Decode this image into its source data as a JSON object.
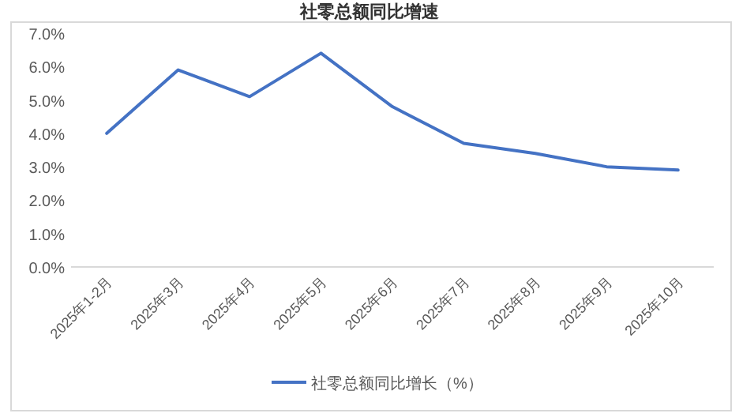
{
  "chart_data": {
    "type": "line",
    "title": "社零总额同比增速",
    "categories": [
      "2025年1-2月",
      "2025年3月",
      "2025年4月",
      "2025年5月",
      "2025年6月",
      "2025年7月",
      "2025年8月",
      "2025年9月",
      "2025年10月"
    ],
    "series": [
      {
        "name": "社零总额同比增长（%）",
        "color": "#4472c4",
        "values": [
          4.0,
          5.9,
          5.1,
          6.4,
          4.8,
          3.7,
          3.4,
          3.0,
          2.9
        ]
      }
    ],
    "ylim": [
      0,
      7
    ],
    "yticks": [
      {
        "value": 0,
        "label": "0.0%"
      },
      {
        "value": 1,
        "label": "1.0%"
      },
      {
        "value": 2,
        "label": "2.0%"
      },
      {
        "value": 3,
        "label": "3.0%"
      },
      {
        "value": 4,
        "label": "4.0%"
      },
      {
        "value": 5,
        "label": "5.0%"
      },
      {
        "value": 6,
        "label": "6.0%"
      },
      {
        "value": 7,
        "label": "7.0%"
      }
    ],
    "legend": "bottom",
    "marker": "none",
    "line_style": "solid"
  }
}
